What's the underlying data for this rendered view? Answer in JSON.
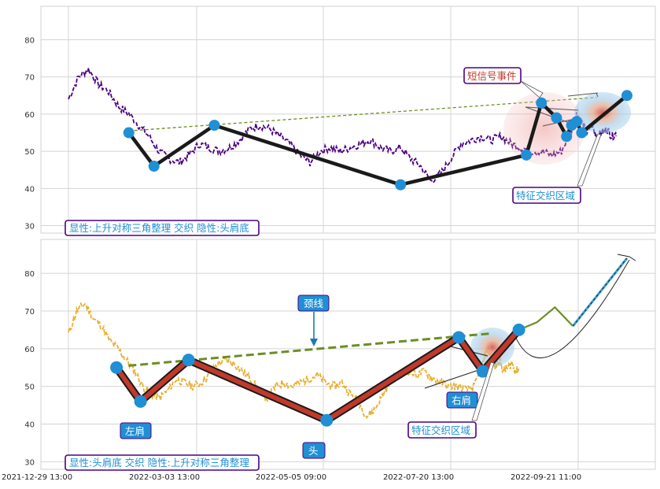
{
  "chart_data": [
    {
      "type": "line",
      "panel": "top",
      "ylim": [
        28,
        89
      ],
      "y_ticks": [
        "30",
        "40",
        "50",
        "60",
        "70",
        "80"
      ],
      "grid": true,
      "colors": {
        "price": "#4b0082",
        "pattern": "#1a1a1a",
        "trend": "#6b8e23",
        "node": "#1f8fd6"
      },
      "price_anchors": [
        [
          0,
          64
        ],
        [
          2,
          70
        ],
        [
          4,
          72
        ],
        [
          6,
          68
        ],
        [
          8,
          66
        ],
        [
          10,
          62
        ],
        [
          12,
          60
        ],
        [
          14,
          57
        ],
        [
          16,
          54
        ],
        [
          18,
          50
        ],
        [
          20,
          48
        ],
        [
          22,
          47
        ],
        [
          24,
          49
        ],
        [
          26,
          52
        ],
        [
          28,
          51
        ],
        [
          30,
          50
        ],
        [
          32,
          51
        ],
        [
          34,
          53
        ],
        [
          36,
          56
        ],
        [
          38,
          57
        ],
        [
          40,
          56
        ],
        [
          42,
          54
        ],
        [
          44,
          52
        ],
        [
          46,
          49
        ],
        [
          48,
          47
        ],
        [
          50,
          50
        ],
        [
          52,
          51
        ],
        [
          54,
          50
        ],
        [
          56,
          51
        ],
        [
          58,
          52
        ],
        [
          60,
          53
        ],
        [
          62,
          51
        ],
        [
          64,
          50
        ],
        [
          66,
          51
        ],
        [
          68,
          48
        ],
        [
          70,
          46
        ],
        [
          72,
          42
        ],
        [
          74,
          44
        ],
        [
          76,
          48
        ],
        [
          78,
          52
        ],
        [
          80,
          53
        ],
        [
          82,
          54
        ],
        [
          84,
          53
        ],
        [
          86,
          54
        ],
        [
          88,
          52
        ],
        [
          90,
          51
        ],
        [
          92,
          50
        ],
        [
          94,
          50
        ],
        [
          96,
          49
        ],
        [
          98,
          50
        ],
        [
          100,
          56
        ],
        [
          101,
          60
        ],
        [
          102,
          58
        ],
        [
          103,
          55
        ],
        [
          104,
          57
        ],
        [
          105,
          54
        ],
        [
          106,
          55
        ],
        [
          107,
          56
        ],
        [
          108,
          54
        ],
        [
          109,
          55
        ]
      ],
      "pattern_points": [
        [
          12,
          55
        ],
        [
          17,
          46
        ],
        [
          29,
          57
        ],
        [
          66,
          41
        ],
        [
          91,
          49
        ],
        [
          94,
          63
        ],
        [
          97,
          59
        ],
        [
          99,
          54
        ],
        [
          100,
          57
        ],
        [
          101,
          58
        ],
        [
          102,
          55
        ],
        [
          111,
          65
        ]
      ],
      "trend_line": [
        [
          12,
          55.5
        ],
        [
          105,
          64.5
        ]
      ],
      "labels": {
        "title_box": "显性:上升对称三角整理 交织 隐性:头肩底",
        "short_signal": "短信号事件",
        "zone": "特征交织区域"
      }
    },
    {
      "type": "line",
      "panel": "bottom",
      "ylim": [
        28,
        89
      ],
      "y_ticks": [
        "30",
        "40",
        "50",
        "60",
        "70",
        "80"
      ],
      "x_ticks": [
        "2021-12-29 13:00",
        "2022-03-03 13:00",
        "2022-05-05 09:00",
        "2022-07-20 13:00",
        "2022-09-21 11:00"
      ],
      "grid": true,
      "colors": {
        "price": "#e8b030",
        "pattern": "#1a1a1a",
        "pattern_fill": "#c0392b",
        "neckline": "#6b8e23",
        "node": "#1f8fd6",
        "projection": "#3aa0d8"
      },
      "pattern_points": [
        [
          8,
          55
        ],
        [
          12,
          46
        ],
        [
          20,
          57
        ],
        [
          43,
          41
        ],
        [
          65,
          63
        ],
        [
          69,
          54
        ],
        [
          75,
          65
        ]
      ],
      "neckline": [
        [
          10,
          55.5
        ],
        [
          70,
          64
        ]
      ],
      "projection": [
        [
          75,
          65
        ],
        [
          78,
          67
        ],
        [
          81,
          71
        ],
        [
          84,
          66
        ],
        [
          93,
          84
        ]
      ],
      "labels": {
        "title_box": "显性:头肩底 交织 隐性:上升对称三角整理",
        "neckline": "颈线",
        "left_shoulder": "左肩",
        "head": "头",
        "right_shoulder": "右肩",
        "zone": "特征交织区域"
      }
    }
  ]
}
